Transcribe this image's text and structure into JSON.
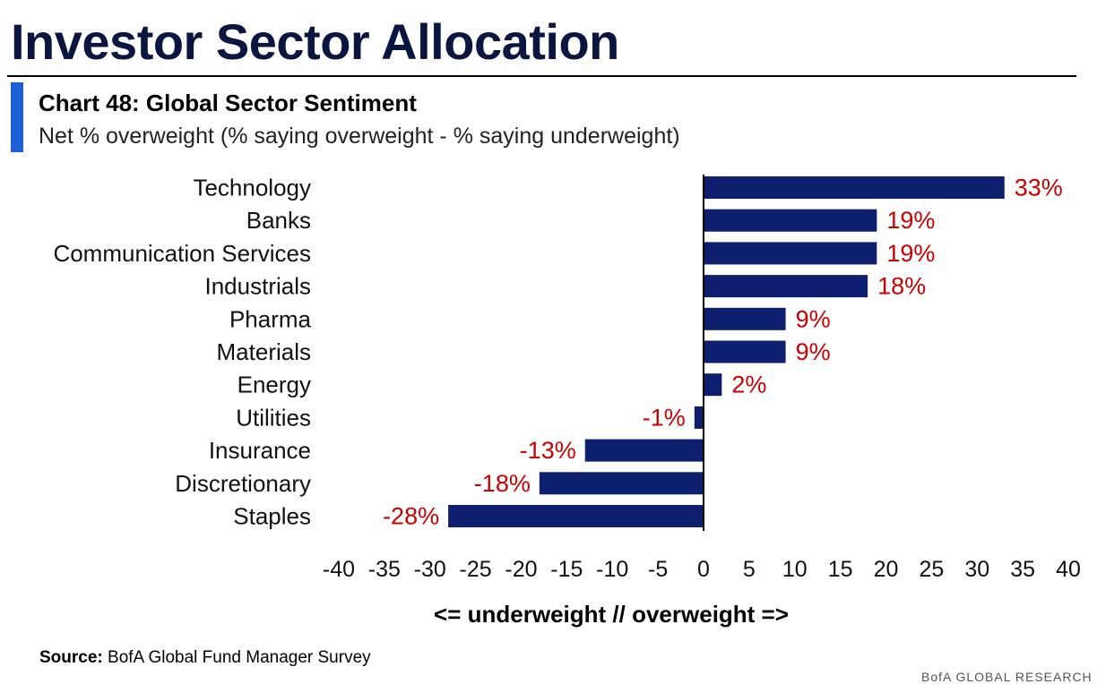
{
  "header": {
    "title": "Investor Sector Allocation"
  },
  "chart_data": {
    "type": "bar",
    "orientation": "horizontal",
    "title": "Chart 48: Global Sector Sentiment",
    "subtitle": "Net % overweight (% saying overweight - % saying underweight)",
    "xlabel": "<= underweight // overweight =>",
    "categories": [
      "Technology",
      "Banks",
      "Communication Services",
      "Industrials",
      "Pharma",
      "Materials",
      "Energy",
      "Utilities",
      "Insurance",
      "Discretionary",
      "Staples"
    ],
    "values": [
      33,
      19,
      19,
      18,
      9,
      9,
      2,
      -1,
      -13,
      -18,
      -28
    ],
    "data_labels": [
      "33%",
      "19%",
      "19%",
      "18%",
      "9%",
      "9%",
      "2%",
      "-1%",
      "-13%",
      "-18%",
      "-28%"
    ],
    "xlim": [
      -40,
      40
    ],
    "x_ticks": [
      -40,
      -35,
      -30,
      -25,
      -20,
      -15,
      -10,
      -5,
      0,
      5,
      10,
      15,
      20,
      25,
      30,
      35,
      40
    ],
    "grid": false,
    "legend": "none",
    "colors": {
      "bar": "#0d1f6e",
      "label": "#cc0000",
      "axis": "#000000"
    }
  },
  "source": {
    "label": "Source:",
    "text": "BofA Global Fund Manager Survey"
  },
  "footer": {
    "brand": "BofA GLOBAL RESEARCH"
  }
}
